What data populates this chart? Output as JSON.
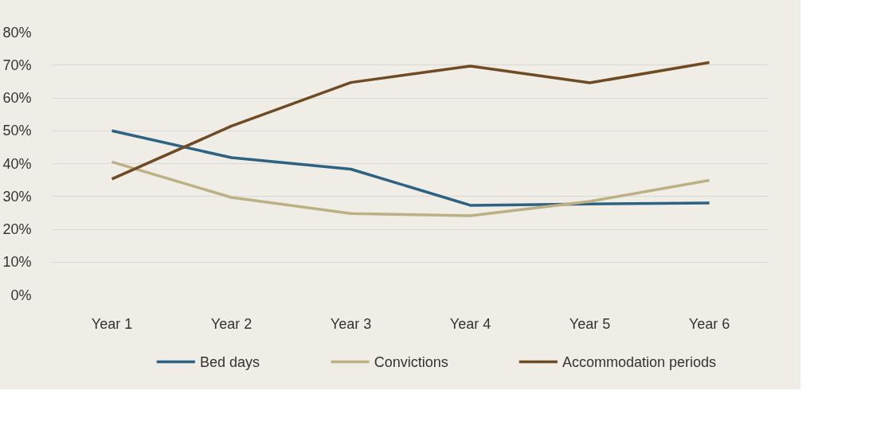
{
  "chart_data": {
    "type": "line",
    "categories": [
      "Year 1",
      "Year 2",
      "Year 3",
      "Year 4",
      "Year 5",
      "Year 6"
    ],
    "ylim": [
      0,
      80
    ],
    "yticks": [
      {
        "value": 0,
        "label": "0%"
      },
      {
        "value": 10,
        "label": "10%"
      },
      {
        "value": 20,
        "label": "20%"
      },
      {
        "value": 30,
        "label": "30%"
      },
      {
        "value": 40,
        "label": "40%"
      },
      {
        "value": 50,
        "label": "50%"
      },
      {
        "value": 60,
        "label": "60%"
      },
      {
        "value": 70,
        "label": "70%"
      },
      {
        "value": 80,
        "label": "80%"
      }
    ],
    "grid": "y",
    "legend": "bottom",
    "marker": "none",
    "line_style": "solid",
    "series": [
      {
        "name": "Bed days",
        "color": "#2e6282",
        "values": [
          50,
          41.8,
          38.3,
          27.3,
          27.7,
          28
        ]
      },
      {
        "name": "Convictions",
        "color": "#bcb084",
        "values": [
          40.5,
          29.7,
          24.8,
          24.1,
          28.5,
          34.9
        ]
      },
      {
        "name": "Accommodation periods",
        "color": "#6e4b24",
        "values": [
          35.3,
          51.4,
          64.7,
          69.7,
          64.6,
          70.8
        ]
      }
    ]
  }
}
